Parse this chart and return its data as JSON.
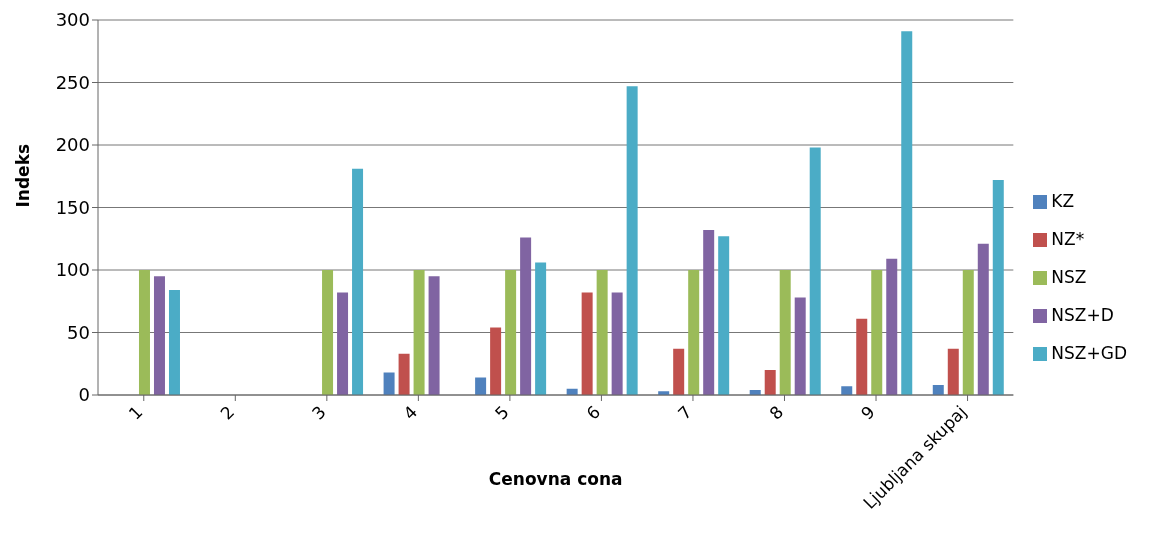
{
  "chart_data": {
    "type": "bar",
    "xlabel": "Cenovna cona",
    "ylabel": "Indeks",
    "categories": [
      "1",
      "2",
      "3",
      "4",
      "5",
      "6",
      "7",
      "8",
      "9",
      "Ljubljana skupaj"
    ],
    "series": [
      {
        "name": "KZ",
        "color": "#4f81bd",
        "values": [
          null,
          null,
          null,
          18,
          14,
          5,
          3,
          4,
          7,
          8
        ]
      },
      {
        "name": "NZ*",
        "color": "#c0504d",
        "values": [
          null,
          null,
          null,
          33,
          54,
          82,
          37,
          20,
          61,
          37
        ]
      },
      {
        "name": "NSZ",
        "color": "#9bbb59",
        "values": [
          100,
          null,
          100,
          100,
          100,
          100,
          100,
          100,
          100,
          100
        ]
      },
      {
        "name": "NSZ+D",
        "color": "#8064a2",
        "values": [
          95,
          null,
          82,
          95,
          126,
          82,
          132,
          78,
          109,
          121
        ]
      },
      {
        "name": "NSZ+GD",
        "color": "#4bacc6",
        "values": [
          84,
          null,
          181,
          null,
          106,
          247,
          127,
          198,
          291,
          172
        ]
      }
    ],
    "ylim": [
      0,
      300
    ],
    "yticks": [
      0,
      50,
      100,
      150,
      200,
      250,
      300
    ],
    "grid": "y",
    "legend": "right"
  }
}
